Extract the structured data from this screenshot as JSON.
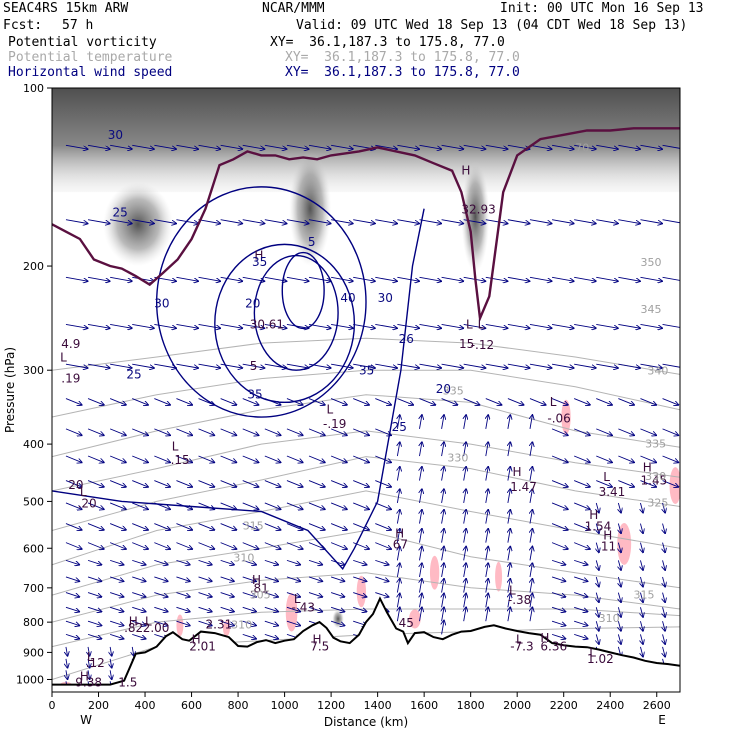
{
  "header": {
    "model": "SEAC4RS 15km ARW",
    "org": "NCAR/MMM",
    "init": "Init: 00 UTC Mon 16 Sep 13",
    "fcst_label": "Fcst:",
    "fcst_value": "57 h",
    "valid": "Valid: 09 UTC Wed 18 Sep 13 (04 CDT Wed 18 Sep 13)",
    "fields": [
      {
        "name": "Potential vorticity",
        "xy": "XY=  36.1,187.3 to 175.8, 77.0",
        "color": "#000000"
      },
      {
        "name": "Potential temperature",
        "xy": "XY=  36.1,187.3 to 175.8, 77.0",
        "color": "#a9a9a9"
      },
      {
        "name": "Horizontal wind speed",
        "xy": "XY=  36.1,187.3 to 175.8, 77.0",
        "color": "#000080"
      }
    ]
  },
  "colors": {
    "pv_shade": "#6e6e6e",
    "pv_pink": "#ffb6c1",
    "theta": "#b4b4b4",
    "wind": "#000080",
    "terrain": "#000000",
    "tropopause": "#5a1040"
  },
  "chart_data": {
    "type": "cross-section",
    "xlabel": "Distance (km)",
    "ylabel": "Pressure (hPa)",
    "xlim": [
      0,
      2700
    ],
    "ylim": [
      1050,
      100
    ],
    "x_ticks": [
      "0",
      "200",
      "400",
      "600",
      "800",
      "1000",
      "1200",
      "1400",
      "1600",
      "1800",
      "2000",
      "2200",
      "2400",
      "2600"
    ],
    "y_ticks": [
      "100",
      "200",
      "300",
      "400",
      "500",
      "600",
      "700",
      "800",
      "900",
      "1000"
    ],
    "x_tick_values": [
      0,
      200,
      400,
      600,
      800,
      1000,
      1200,
      1400,
      1600,
      1800,
      2000,
      2200,
      2400,
      2600
    ],
    "y_tick_values": [
      100,
      200,
      300,
      400,
      500,
      600,
      700,
      800,
      900,
      1000
    ],
    "west_label": "W",
    "east_label": "E",
    "terrain_profile": [
      [
        0,
        1020
      ],
      [
        120,
        1020
      ],
      [
        250,
        1020
      ],
      [
        310,
        1005
      ],
      [
        360,
        905
      ],
      [
        400,
        900
      ],
      [
        450,
        880
      ],
      [
        490,
        845
      ],
      [
        520,
        832
      ],
      [
        560,
        855
      ],
      [
        590,
        860
      ],
      [
        640,
        830
      ],
      [
        700,
        835
      ],
      [
        760,
        848
      ],
      [
        800,
        878
      ],
      [
        840,
        880
      ],
      [
        880,
        865
      ],
      [
        920,
        858
      ],
      [
        960,
        868
      ],
      [
        1000,
        860
      ],
      [
        1040,
        855
      ],
      [
        1080,
        828
      ],
      [
        1120,
        810
      ],
      [
        1150,
        800
      ],
      [
        1180,
        818
      ],
      [
        1210,
        850
      ],
      [
        1240,
        862
      ],
      [
        1280,
        868
      ],
      [
        1320,
        840
      ],
      [
        1350,
        800
      ],
      [
        1380,
        775
      ],
      [
        1410,
        730
      ],
      [
        1440,
        770
      ],
      [
        1480,
        820
      ],
      [
        1510,
        830
      ],
      [
        1530,
        868
      ],
      [
        1560,
        835
      ],
      [
        1600,
        832
      ],
      [
        1640,
        848
      ],
      [
        1680,
        855
      ],
      [
        1720,
        840
      ],
      [
        1760,
        830
      ],
      [
        1800,
        828
      ],
      [
        1860,
        815
      ],
      [
        1900,
        810
      ],
      [
        1950,
        820
      ],
      [
        2000,
        828
      ],
      [
        2050,
        835
      ],
      [
        2100,
        840
      ],
      [
        2150,
        868
      ],
      [
        2200,
        875
      ],
      [
        2250,
        880
      ],
      [
        2300,
        882
      ],
      [
        2350,
        890
      ],
      [
        2400,
        900
      ],
      [
        2450,
        910
      ],
      [
        2500,
        918
      ],
      [
        2550,
        930
      ],
      [
        2600,
        938
      ],
      [
        2650,
        942
      ],
      [
        2700,
        948
      ]
    ],
    "tropopause_line": [
      [
        0,
        170
      ],
      [
        60,
        175
      ],
      [
        120,
        180
      ],
      [
        180,
        195
      ],
      [
        250,
        200
      ],
      [
        300,
        202
      ],
      [
        360,
        208
      ],
      [
        420,
        215
      ],
      [
        480,
        205
      ],
      [
        540,
        195
      ],
      [
        600,
        180
      ],
      [
        660,
        160
      ],
      [
        720,
        135
      ],
      [
        780,
        132
      ],
      [
        840,
        128
      ],
      [
        900,
        130
      ],
      [
        960,
        130
      ],
      [
        1020,
        132
      ],
      [
        1080,
        131
      ],
      [
        1140,
        132
      ],
      [
        1200,
        130
      ],
      [
        1260,
        129
      ],
      [
        1320,
        128
      ],
      [
        1400,
        126
      ],
      [
        1480,
        128
      ],
      [
        1560,
        130
      ],
      [
        1640,
        134
      ],
      [
        1720,
        138
      ],
      [
        1760,
        150
      ],
      [
        1800,
        175
      ],
      [
        1820,
        210
      ],
      [
        1840,
        245
      ],
      [
        1880,
        225
      ],
      [
        1940,
        150
      ],
      [
        2000,
        130
      ],
      [
        2100,
        122
      ],
      [
        2200,
        120
      ],
      [
        2300,
        118
      ],
      [
        2400,
        118
      ],
      [
        2500,
        117
      ],
      [
        2600,
        117
      ],
      [
        2700,
        117
      ]
    ],
    "pv_high_band": {
      "top": 100,
      "bottom": 150
    },
    "pv_blobs": [
      {
        "x": 1110,
        "p": 160,
        "rx": 90,
        "rp": 40
      },
      {
        "x": 370,
        "p": 170,
        "rx": 150,
        "rp": 30
      },
      {
        "x": 1820,
        "p": 165,
        "rx": 60,
        "rp": 40
      },
      {
        "x": 1230,
        "p": 790,
        "rx": 25,
        "rp": 30
      }
    ],
    "pink_regions": [
      {
        "x": 2210,
        "p": 360,
        "rx": 20,
        "rp": 25
      },
      {
        "x": 2680,
        "p": 470,
        "rx": 25,
        "rp": 35
      },
      {
        "x": 2460,
        "p": 590,
        "rx": 30,
        "rp": 50
      },
      {
        "x": 1645,
        "p": 660,
        "rx": 20,
        "rp": 45
      },
      {
        "x": 1920,
        "p": 670,
        "rx": 15,
        "rp": 40
      },
      {
        "x": 1030,
        "p": 770,
        "rx": 25,
        "rp": 60
      },
      {
        "x": 1330,
        "p": 710,
        "rx": 20,
        "rp": 45
      },
      {
        "x": 1560,
        "p": 790,
        "rx": 25,
        "rp": 30
      },
      {
        "x": 550,
        "p": 810,
        "rx": 15,
        "rp": 35
      },
      {
        "x": 750,
        "p": 820,
        "rx": 15,
        "rp": 25
      },
      {
        "x": 60,
        "p": 1020,
        "rx": 25,
        "rp": 10
      }
    ],
    "pv_labels": [
      {
        "text": "4.9",
        "x": 40,
        "p": 275
      },
      {
        "text": "L",
        "x": 35,
        "p": 290
      },
      {
        "text": ".19",
        "x": 40,
        "p": 315
      },
      {
        "text": "L",
        "x": 515,
        "p": 410
      },
      {
        "text": ".15",
        "x": 510,
        "p": 432
      },
      {
        "text": "20",
        "x": 70,
        "p": 476
      },
      {
        "text": "L",
        "x": 120,
        "p": 490
      },
      {
        "text": ".20",
        "x": 110,
        "p": 512
      },
      {
        "text": "L",
        "x": 1180,
        "p": 355
      },
      {
        "text": "-.19",
        "x": 1165,
        "p": 376
      },
      {
        "text": "L",
        "x": 1830,
        "p": 255
      },
      {
        "text": "-.12",
        "x": 1800,
        "p": 276
      },
      {
        "text": "L",
        "x": 2140,
        "p": 345
      },
      {
        "text": "-.06",
        "x": 2130,
        "p": 368
      },
      {
        "text": "H",
        "x": 1980,
        "p": 453
      },
      {
        "text": "1.47",
        "x": 1970,
        "p": 480
      },
      {
        "text": "L",
        "x": 2370,
        "p": 462
      },
      {
        "text": "3.41",
        "x": 2350,
        "p": 490
      },
      {
        "text": "H",
        "x": 2540,
        "p": 445
      },
      {
        "text": "1.45",
        "x": 2530,
        "p": 468
      },
      {
        "text": "H",
        "x": 2310,
        "p": 535
      },
      {
        "text": "1.54",
        "x": 2290,
        "p": 560
      },
      {
        "text": "H",
        "x": 2370,
        "p": 580
      },
      {
        "text": "11",
        "x": 2360,
        "p": 605
      },
      {
        "text": "H",
        "x": 1475,
        "p": 575
      },
      {
        "text": "67",
        "x": 1465,
        "p": 600
      },
      {
        "text": "H",
        "x": 860,
        "p": 690
      },
      {
        "text": ".81",
        "x": 850,
        "p": 713
      },
      {
        "text": "L",
        "x": 1040,
        "p": 742
      },
      {
        "text": "-.43",
        "x": 1030,
        "p": 767
      },
      {
        "text": "L",
        "x": 1965,
        "p": 718
      },
      {
        "text": "-.38",
        "x": 1960,
        "p": 745
      },
      {
        "text": "H",
        "x": 330,
        "p": 810
      },
      {
        "text": "L",
        "x": 400,
        "p": 810
      },
      {
        "text": ".82",
        "x": 310,
        "p": 832
      },
      {
        "text": "2.00",
        "x": 390,
        "p": 832
      },
      {
        "text": "2.31",
        "x": 660,
        "p": 820
      },
      {
        "text": "H",
        "x": 600,
        "p": 870
      },
      {
        "text": "2.01",
        "x": 590,
        "p": 893
      },
      {
        "text": "H",
        "x": 1120,
        "p": 870
      },
      {
        "text": "7.5",
        "x": 1110,
        "p": 893
      },
      {
        "text": "45",
        "x": 1490,
        "p": 815
      },
      {
        "text": "L",
        "x": 1995,
        "p": 870
      },
      {
        "text": "-7.3",
        "x": 1970,
        "p": 893
      },
      {
        "text": "H",
        "x": 2100,
        "p": 865
      },
      {
        "text": "6.36",
        "x": 2100,
        "p": 893
      },
      {
        "text": "L",
        "x": 2310,
        "p": 915
      },
      {
        "text": "1.02",
        "x": 2300,
        "p": 938
      },
      {
        "text": "L",
        "x": 150,
        "p": 930
      },
      {
        "text": ".12",
        "x": 145,
        "p": 952
      },
      {
        "text": "H",
        "x": 120,
        "p": 1005
      },
      {
        "text": "9.38",
        "x": 100,
        "p": 1028
      },
      {
        "text": "1.5",
        "x": 285,
        "p": 1028
      },
      {
        "text": "H",
        "x": 1760,
        "p": 140
      },
      {
        "text": "32.93",
        "x": 1760,
        "p": 163
      },
      {
        "text": "H",
        "x": 870,
        "p": 195
      },
      {
        "text": "30.61",
        "x": 850,
        "p": 255
      },
      {
        "text": "5",
        "x": 850,
        "p": 300
      },
      {
        "text": "L",
        "x": 1780,
        "p": 255
      },
      {
        "text": "15",
        "x": 1750,
        "p": 275
      }
    ],
    "theta_labels": [
      {
        "text": "310",
        "x": 770,
        "p": 820
      },
      {
        "text": "315",
        "x": 820,
        "p": 558
      },
      {
        "text": "310",
        "x": 780,
        "p": 632
      },
      {
        "text": "305",
        "x": 850,
        "p": 730
      },
      {
        "text": "330",
        "x": 1700,
        "p": 428
      },
      {
        "text": "335",
        "x": 1680,
        "p": 330
      },
      {
        "text": "340",
        "x": 2560,
        "p": 305
      },
      {
        "text": "335",
        "x": 2550,
        "p": 405
      },
      {
        "text": "330",
        "x": 2550,
        "p": 460
      },
      {
        "text": "325",
        "x": 2560,
        "p": 510
      },
      {
        "text": "315",
        "x": 2500,
        "p": 730
      },
      {
        "text": "310",
        "x": 2350,
        "p": 800
      },
      {
        "text": "350",
        "x": 2530,
        "p": 200
      },
      {
        "text": "345",
        "x": 2530,
        "p": 240
      },
      {
        "text": "70",
        "x": 2250,
        "p": 128
      }
    ],
    "wind_labels": [
      {
        "text": "30",
        "x": 240,
        "p": 122
      },
      {
        "text": "25",
        "x": 260,
        "p": 165
      },
      {
        "text": "30",
        "x": 440,
        "p": 235
      },
      {
        "text": "20",
        "x": 830,
        "p": 235
      },
      {
        "text": "25",
        "x": 320,
        "p": 310
      },
      {
        "text": "35",
        "x": 860,
        "p": 200
      },
      {
        "text": "40",
        "x": 1240,
        "p": 230
      },
      {
        "text": "30",
        "x": 1400,
        "p": 230
      },
      {
        "text": "35",
        "x": 1320,
        "p": 305
      },
      {
        "text": "26",
        "x": 1490,
        "p": 270
      },
      {
        "text": "20",
        "x": 1650,
        "p": 328
      },
      {
        "text": "25",
        "x": 1460,
        "p": 380
      },
      {
        "text": "35",
        "x": 840,
        "p": 335
      },
      {
        "text": "5",
        "x": 1100,
        "p": 185
      }
    ]
  }
}
